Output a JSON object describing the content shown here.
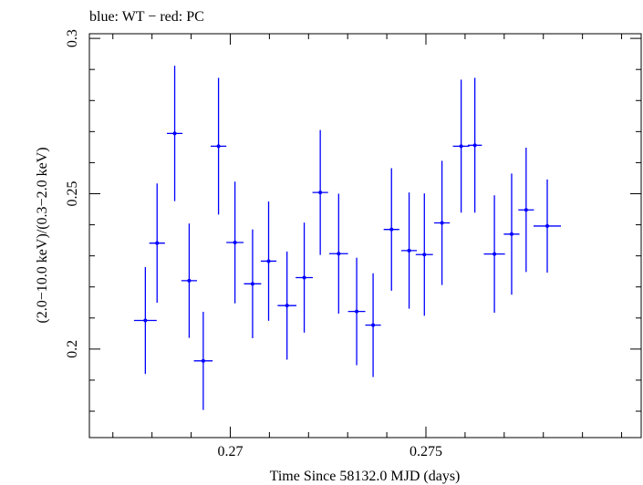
{
  "chart_data": {
    "type": "scatter",
    "title": "blue: WT − red: PC",
    "xlabel": "Time Since 58132.0 MJD (days)",
    "ylabel": "(2.0−10.0 keV)/(0.3−2.0 keV)",
    "xlim": [
      0.2664,
      0.2805
    ],
    "ylim": [
      0.1715,
      0.3015
    ],
    "xticks": [
      0.27,
      0.275
    ],
    "xtick_labels": [
      "0.27",
      "0.275"
    ],
    "yticks": [
      0.2,
      0.25,
      0.3
    ],
    "ytick_labels": [
      "0.2",
      "0.25",
      "0.3"
    ],
    "grid": false,
    "series": [
      {
        "color": "#0000ff",
        "points": [
          {
            "x": 0.26783,
            "xerr": 0.00029,
            "y": 0.2092,
            "yerr": 0.0172
          },
          {
            "x": 0.26813,
            "xerr": 0.0002,
            "y": 0.2341,
            "yerr": 0.0192
          },
          {
            "x": 0.26858,
            "xerr": 0.0002,
            "y": 0.2694,
            "yerr": 0.0218
          },
          {
            "x": 0.26895,
            "xerr": 0.0002,
            "y": 0.222,
            "yerr": 0.0184
          },
          {
            "x": 0.26931,
            "xerr": 0.00024,
            "y": 0.1962,
            "yerr": 0.0158
          },
          {
            "x": 0.2697,
            "xerr": 0.0002,
            "y": 0.2653,
            "yerr": 0.022
          },
          {
            "x": 0.27012,
            "xerr": 0.00022,
            "y": 0.2343,
            "yerr": 0.0196
          },
          {
            "x": 0.27057,
            "xerr": 0.00022,
            "y": 0.221,
            "yerr": 0.0175
          },
          {
            "x": 0.27098,
            "xerr": 0.0002,
            "y": 0.2283,
            "yerr": 0.0192
          },
          {
            "x": 0.27145,
            "xerr": 0.00024,
            "y": 0.214,
            "yerr": 0.0174
          },
          {
            "x": 0.27189,
            "xerr": 0.00022,
            "y": 0.223,
            "yerr": 0.0177
          },
          {
            "x": 0.2723,
            "xerr": 0.0002,
            "y": 0.2504,
            "yerr": 0.0201
          },
          {
            "x": 0.27277,
            "xerr": 0.00024,
            "y": 0.2307,
            "yerr": 0.0193
          },
          {
            "x": 0.27323,
            "xerr": 0.00022,
            "y": 0.2121,
            "yerr": 0.0173
          },
          {
            "x": 0.27365,
            "xerr": 0.0002,
            "y": 0.2077,
            "yerr": 0.0167
          },
          {
            "x": 0.27412,
            "xerr": 0.0002,
            "y": 0.2385,
            "yerr": 0.0197
          },
          {
            "x": 0.27457,
            "xerr": 0.0002,
            "y": 0.2317,
            "yerr": 0.0187
          },
          {
            "x": 0.27496,
            "xerr": 0.00022,
            "y": 0.2304,
            "yerr": 0.0197
          },
          {
            "x": 0.27541,
            "xerr": 0.0002,
            "y": 0.2406,
            "yerr": 0.02
          },
          {
            "x": 0.2759,
            "xerr": 0.00021,
            "y": 0.2653,
            "yerr": 0.0214
          },
          {
            "x": 0.27625,
            "xerr": 0.00018,
            "y": 0.2656,
            "yerr": 0.0217
          },
          {
            "x": 0.27675,
            "xerr": 0.00027,
            "y": 0.2306,
            "yerr": 0.0189
          },
          {
            "x": 0.27719,
            "xerr": 0.0002,
            "y": 0.237,
            "yerr": 0.0195
          },
          {
            "x": 0.27756,
            "xerr": 0.0002,
            "y": 0.2448,
            "yerr": 0.02
          },
          {
            "x": 0.2781,
            "xerr": 0.00035,
            "y": 0.2396,
            "yerr": 0.015
          }
        ]
      }
    ]
  }
}
